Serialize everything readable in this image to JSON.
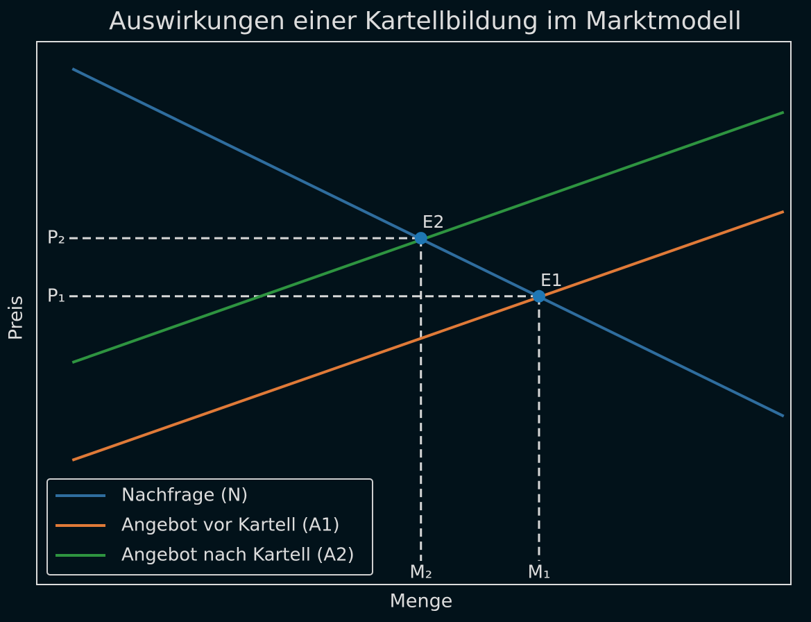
{
  "chart_data": {
    "type": "line",
    "title": "Auswirkungen einer Kartellbildung im Marktmodell",
    "x_label": "Menge",
    "y_label": "Preis",
    "xlim": [
      0,
      10.6
    ],
    "ylim": [
      0,
      10
    ],
    "x": [
      0.5,
      10.5
    ],
    "series": [
      {
        "name": "Nachfrage (N)",
        "color": "#2f6d9e",
        "values": [
          9.5,
          3.1
        ]
      },
      {
        "name": "Angebot vor Kartell (A1)",
        "color": "#e07a38",
        "values": [
          2.29,
          6.87
        ]
      },
      {
        "name": "Angebot nach Kartell (A2)",
        "color": "#2e9440",
        "values": [
          4.09,
          8.7
        ]
      }
    ],
    "points": [
      {
        "label": "E1",
        "x": 7.06,
        "y": 5.31,
        "color": "#1f77b4"
      },
      {
        "label": "E2",
        "x": 5.4,
        "y": 6.38,
        "color": "#1f77b4"
      }
    ],
    "xticks": [
      {
        "value": 5.4,
        "label": "M₂"
      },
      {
        "value": 7.06,
        "label": "M₁"
      }
    ],
    "yticks": [
      {
        "value": 6.38,
        "label": "P₂"
      },
      {
        "value": 5.31,
        "label": "P₁"
      }
    ],
    "grid": false,
    "legend": "lower left"
  }
}
